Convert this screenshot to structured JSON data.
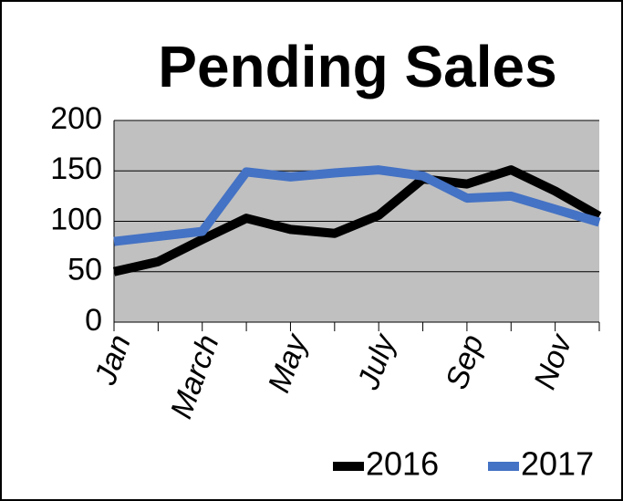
{
  "chart_data": {
    "type": "line",
    "title": "Pending Sales",
    "categories": [
      "Jan",
      null,
      "March",
      null,
      "May",
      null,
      "July",
      null,
      "Sep",
      null,
      "Nov",
      null
    ],
    "series": [
      {
        "name": "2016",
        "color": "#000000",
        "values": [
          50,
          60,
          82,
          103,
          92,
          88,
          106,
          142,
          137,
          151,
          130,
          105
        ]
      },
      {
        "name": "2017",
        "color": "#4472c4",
        "values": [
          80,
          85,
          90,
          149,
          144,
          148,
          151,
          145,
          123,
          125,
          112,
          99
        ]
      }
    ],
    "ylim": [
      0,
      200
    ],
    "yticks": [
      0,
      50,
      100,
      150,
      200
    ],
    "grid": true,
    "legend": "bottom"
  }
}
